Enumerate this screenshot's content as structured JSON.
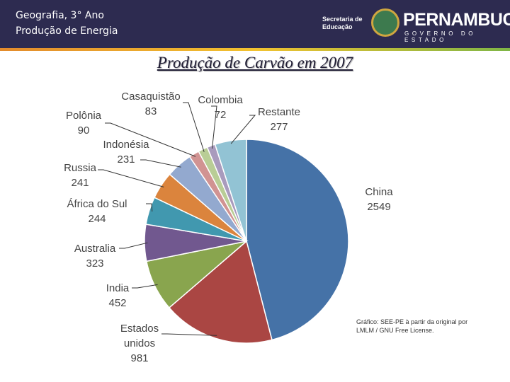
{
  "header": {
    "line1": "Geografia, 3° Ano",
    "line2": "Produção de Energia",
    "logo_small1": "Secretaria de",
    "logo_small2": "Educação",
    "logo_big": "PERNAMBUCO",
    "logo_sub": "GOVERNO DO ESTADO"
  },
  "chart_data": {
    "type": "pie",
    "title": "Produção de Carvão em 2007",
    "categories": [
      "China",
      "Estados unidos",
      "India",
      "Australia",
      "África do Sul",
      "Russia",
      "Indonésia",
      "Polônia",
      "Casaquistão",
      "Colombia",
      "Restante"
    ],
    "values": [
      2549,
      981,
      452,
      323,
      244,
      241,
      231,
      90,
      83,
      72,
      277
    ],
    "colors": [
      "#4572a7",
      "#aa4643",
      "#89a54e",
      "#71588f",
      "#4198af",
      "#db843d",
      "#93a9cf",
      "#d19392",
      "#b9cd96",
      "#a99bbd",
      "#92c3d4"
    ],
    "annotation": "Gráfico: SEE-PE à partir da original por LMLM / GNU Free License."
  }
}
